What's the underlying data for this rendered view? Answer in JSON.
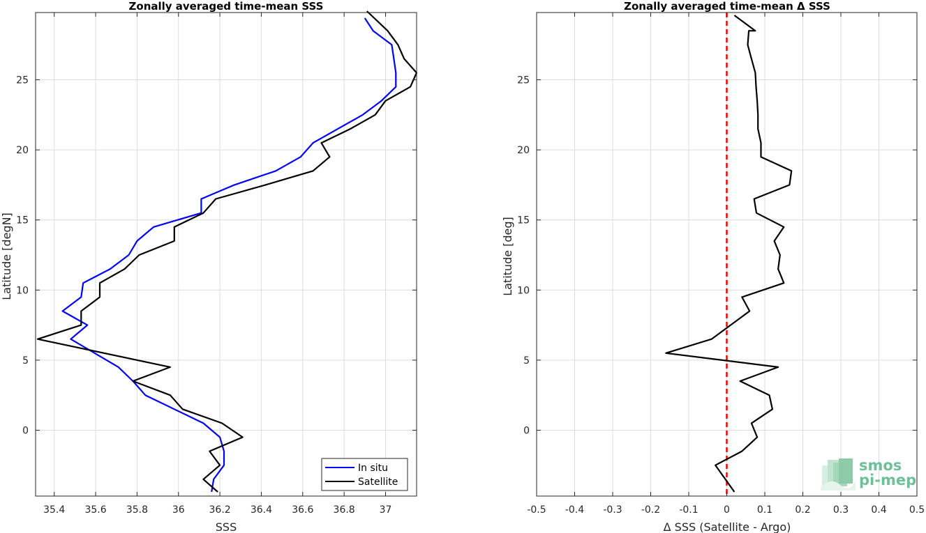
{
  "chart_data": [
    {
      "type": "line",
      "title": "Zonally averaged time-mean SSS",
      "xlabel": "SSS",
      "ylabel": "Latitude [degN]",
      "xlim": [
        35.31,
        37.15
      ],
      "ylim": [
        -4.7,
        29.8
      ],
      "xticks": [
        35.4,
        35.6,
        35.8,
        36,
        36.2,
        36.4,
        36.6,
        36.8,
        37
      ],
      "xtick_labels": [
        "35.4",
        "35.6",
        "35.8",
        "36",
        "36.2",
        "36.4",
        "36.6",
        "36.8",
        "37"
      ],
      "yticks": [
        0,
        5,
        10,
        15,
        20,
        25
      ],
      "ytick_labels": [
        "0",
        "5",
        "10",
        "15",
        "20",
        "25"
      ],
      "grid": true,
      "legend": "bottom-right",
      "series": [
        {
          "name": "In situ",
          "color": "#0000ff",
          "points": [
            [
              36.16,
              -4.4
            ],
            [
              36.17,
              -3.5
            ],
            [
              36.22,
              -2.5
            ],
            [
              36.22,
              -1.5
            ],
            [
              36.2,
              -0.5
            ],
            [
              36.12,
              0.5
            ],
            [
              35.84,
              2.5
            ],
            [
              35.78,
              3.5
            ],
            [
              35.71,
              4.5
            ],
            [
              35.48,
              6.5
            ],
            [
              35.56,
              7.5
            ],
            [
              35.44,
              8.5
            ],
            [
              35.53,
              9.5
            ],
            [
              35.54,
              10.5
            ],
            [
              35.67,
              11.5
            ],
            [
              35.76,
              12.5
            ],
            [
              35.8,
              13.5
            ],
            [
              35.88,
              14.5
            ],
            [
              36.11,
              15.5
            ],
            [
              36.11,
              16.5
            ],
            [
              36.27,
              17.5
            ],
            [
              36.47,
              18.5
            ],
            [
              36.59,
              19.5
            ],
            [
              36.65,
              20.5
            ],
            [
              36.89,
              22.5
            ],
            [
              36.98,
              23.5
            ],
            [
              37.05,
              24.5
            ],
            [
              37.05,
              25.5
            ],
            [
              37.04,
              26.5
            ],
            [
              37.03,
              27.5
            ],
            [
              36.94,
              28.5
            ],
            [
              36.9,
              29.4
            ]
          ]
        },
        {
          "name": "Satellite",
          "color": "#000000",
          "points": [
            [
              36.19,
              -4.4
            ],
            [
              36.12,
              -3.5
            ],
            [
              36.2,
              -2.5
            ],
            [
              36.15,
              -1.5
            ],
            [
              36.31,
              -0.5
            ],
            [
              36.21,
              0.5
            ],
            [
              36.02,
              1.5
            ],
            [
              35.96,
              2.5
            ],
            [
              35.78,
              3.5
            ],
            [
              35.96,
              4.5
            ],
            [
              35.32,
              6.5
            ],
            [
              35.53,
              7.5
            ],
            [
              35.53,
              8.5
            ],
            [
              35.62,
              9.5
            ],
            [
              35.62,
              10.5
            ],
            [
              35.74,
              11.5
            ],
            [
              35.81,
              12.5
            ],
            [
              35.98,
              13.5
            ],
            [
              35.98,
              14.5
            ],
            [
              36.12,
              15.5
            ],
            [
              36.18,
              16.5
            ],
            [
              36.42,
              17.5
            ],
            [
              36.65,
              18.5
            ],
            [
              36.73,
              19.5
            ],
            [
              36.69,
              20.5
            ],
            [
              36.83,
              21.5
            ],
            [
              36.95,
              22.5
            ],
            [
              37.0,
              23.5
            ],
            [
              37.12,
              24.5
            ],
            [
              37.15,
              25.5
            ],
            [
              37.09,
              26.5
            ],
            [
              37.06,
              27.5
            ],
            [
              37.01,
              28.5
            ],
            [
              36.91,
              29.9
            ]
          ]
        }
      ]
    },
    {
      "type": "line",
      "title": "Zonally averaged time-mean Δ SSS",
      "xlabel": "Δ SSS (Satellite - Argo)",
      "ylabel": "Latitude [deg]",
      "xlim": [
        -0.5,
        0.5
      ],
      "ylim": [
        -4.7,
        29.8
      ],
      "xticks": [
        -0.5,
        -0.4,
        -0.3,
        -0.2,
        -0.1,
        0,
        0.1,
        0.2,
        0.3,
        0.4,
        0.5
      ],
      "xtick_labels": [
        "-0.5",
        "-0.4",
        "-0.3",
        "-0.2",
        "-0.1",
        "0",
        "0.1",
        "0.2",
        "0.3",
        "0.4",
        "0.5"
      ],
      "yticks": [
        0,
        5,
        10,
        15,
        20,
        25
      ],
      "ytick_labels": [
        "0",
        "5",
        "10",
        "15",
        "20",
        "25"
      ],
      "grid": true,
      "reference_line": {
        "x": 0,
        "color": "#ff0000",
        "style": "dashed"
      },
      "series": [
        {
          "color": "#000000",
          "points": [
            [
              0.02,
              -4.4
            ],
            [
              -0.03,
              -2.5
            ],
            [
              0.04,
              -1.5
            ],
            [
              0.08,
              -0.5
            ],
            [
              0.065,
              0.5
            ],
            [
              0.12,
              1.5
            ],
            [
              0.112,
              2.5
            ],
            [
              0.035,
              3.5
            ],
            [
              0.135,
              4.5
            ],
            [
              -0.16,
              5.5
            ],
            [
              -0.04,
              6.5
            ],
            [
              0.06,
              8.5
            ],
            [
              0.04,
              9.5
            ],
            [
              0.15,
              10.5
            ],
            [
              0.135,
              11.5
            ],
            [
              0.14,
              12.5
            ],
            [
              0.125,
              13.5
            ],
            [
              0.15,
              14.5
            ],
            [
              0.078,
              15.5
            ],
            [
              0.072,
              16.5
            ],
            [
              0.165,
              17.5
            ],
            [
              0.17,
              18.5
            ],
            [
              0.09,
              19.5
            ],
            [
              0.09,
              20.5
            ],
            [
              0.082,
              21.5
            ],
            [
              0.082,
              22.5
            ],
            [
              0.08,
              23.5
            ],
            [
              0.077,
              24.5
            ],
            [
              0.075,
              25.5
            ],
            [
              0.065,
              26.5
            ],
            [
              0.055,
              27.5
            ],
            [
              0.058,
              28.5
            ],
            [
              0.075,
              28.5
            ],
            [
              0.02,
              29.6
            ]
          ]
        }
      ]
    }
  ],
  "logo": {
    "line1": "smos",
    "line2": "pi-mep",
    "color": "#6fbf9a"
  }
}
